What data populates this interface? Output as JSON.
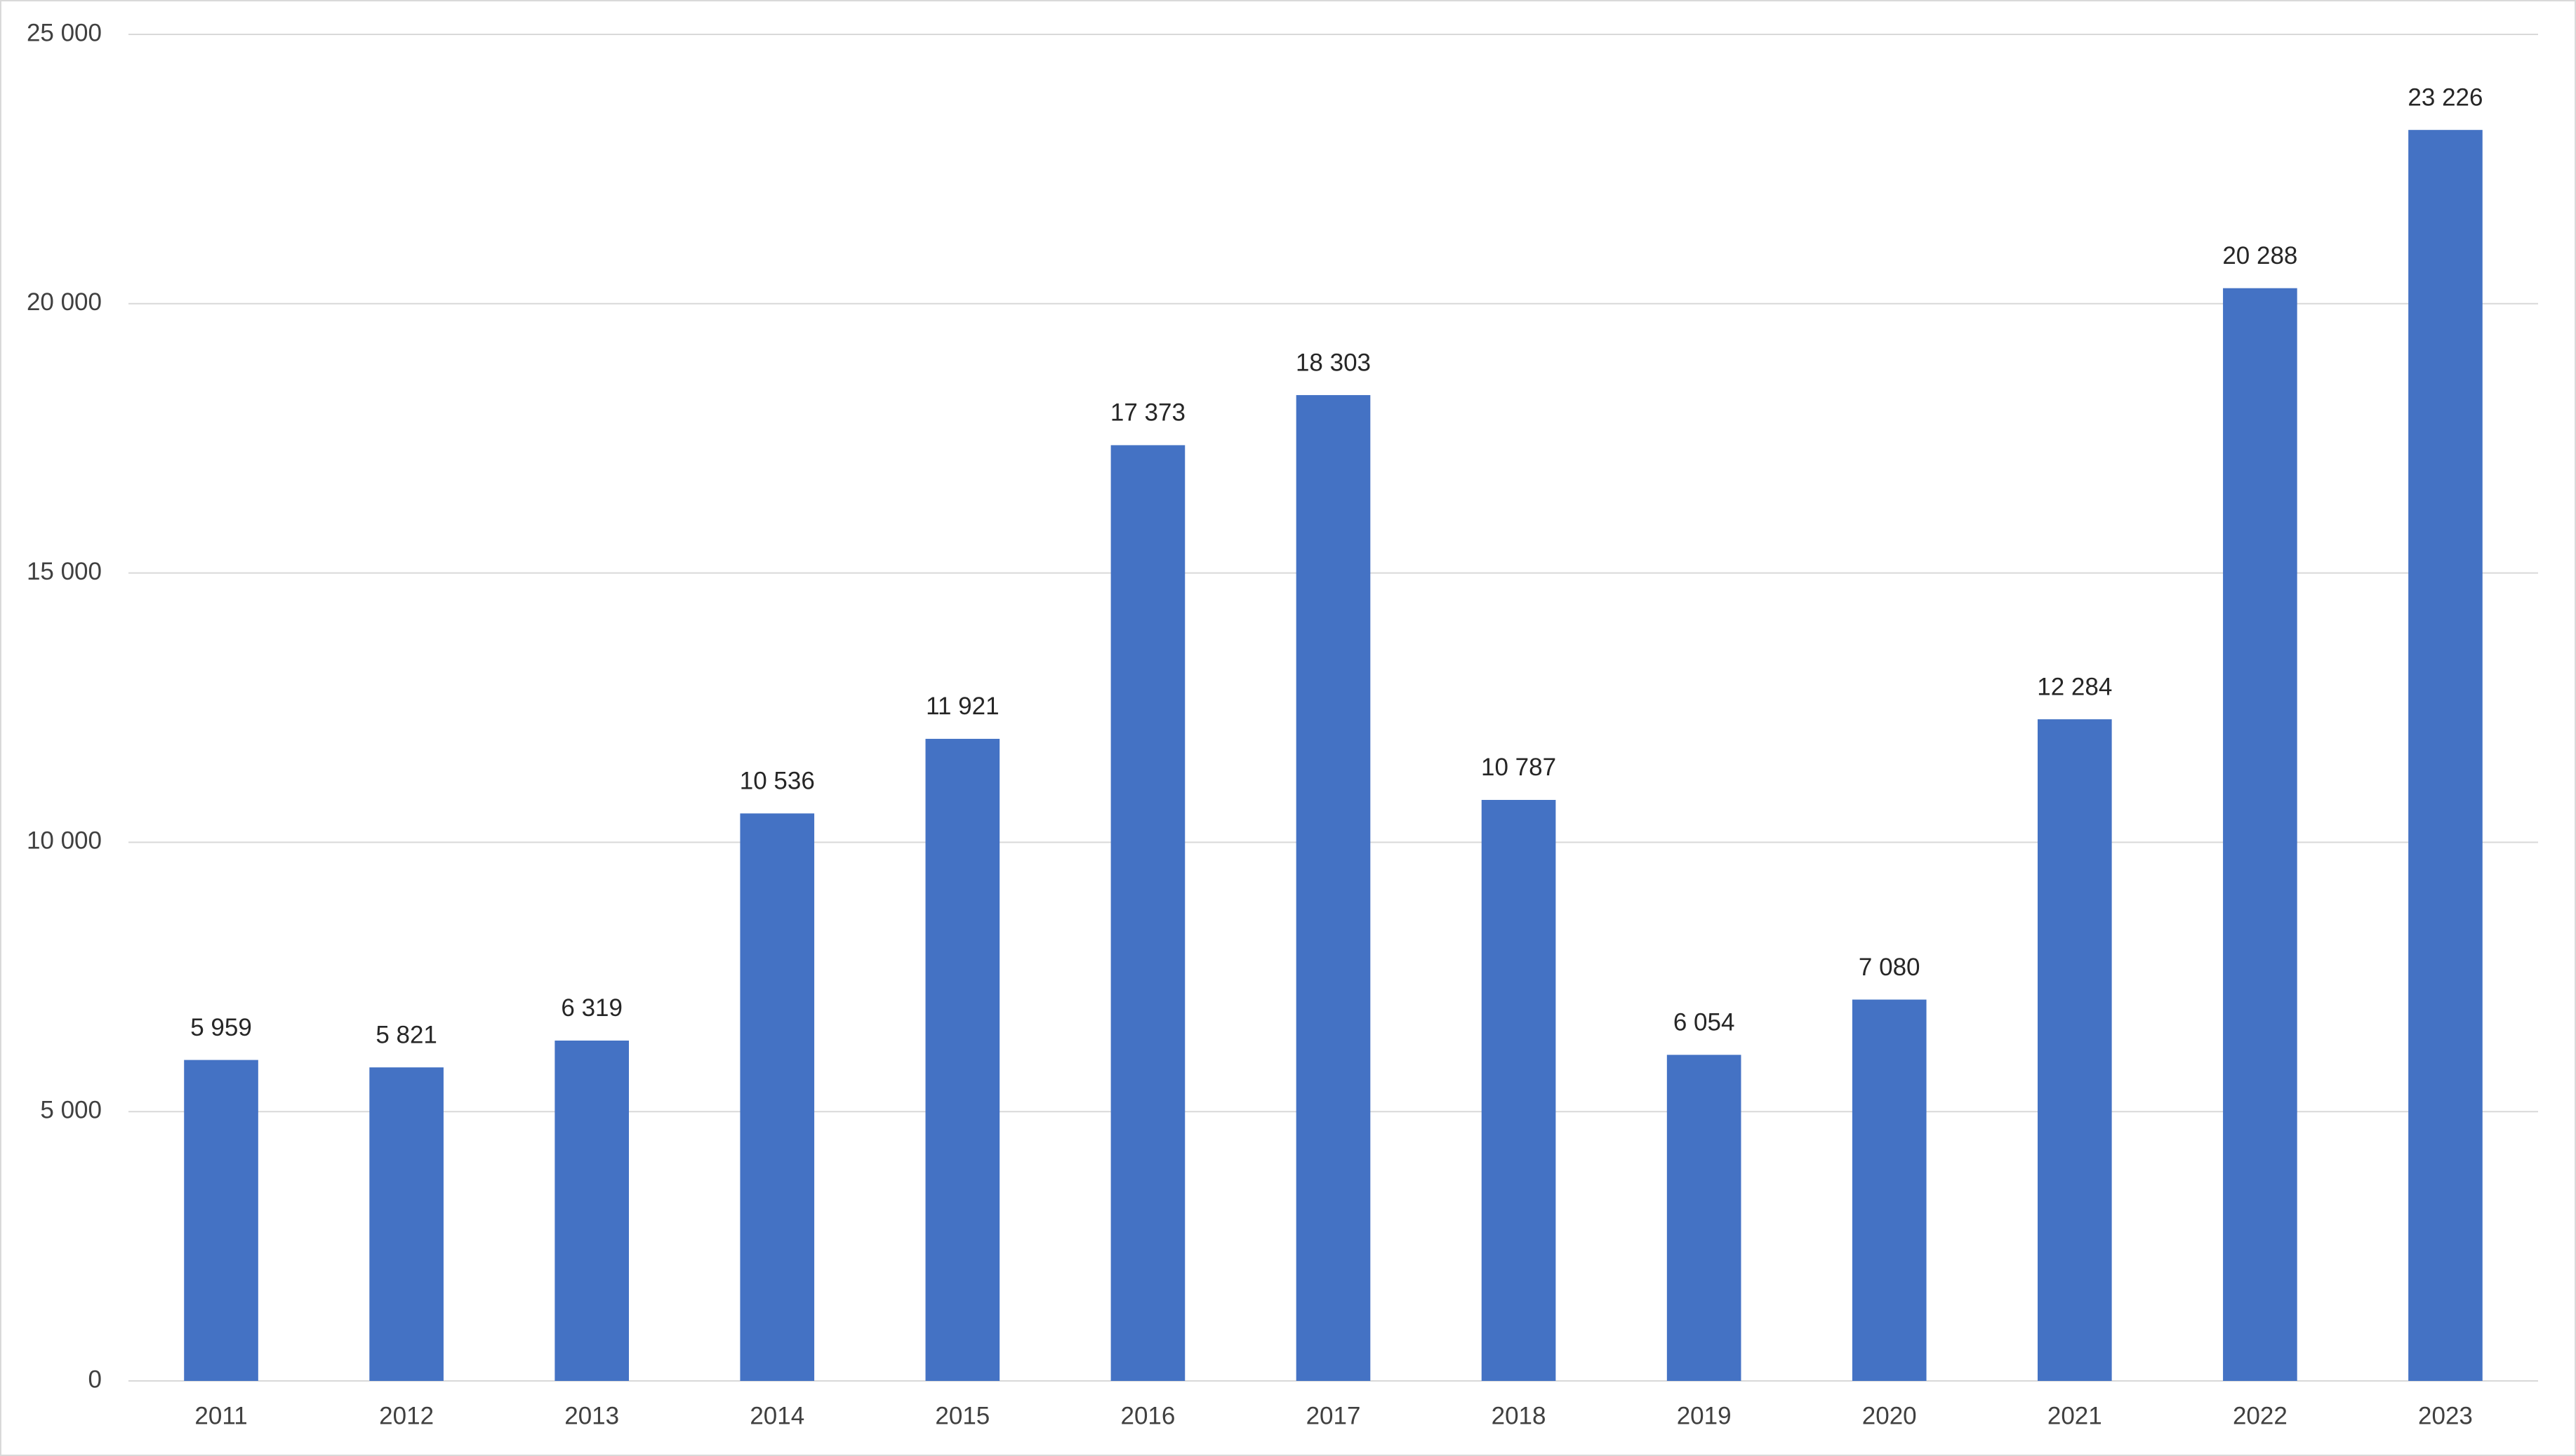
{
  "chart_data": {
    "type": "bar",
    "categories": [
      "2011",
      "2012",
      "2013",
      "2014",
      "2015",
      "2016",
      "2017",
      "2018",
      "2019",
      "2020",
      "2021",
      "2022",
      "2023"
    ],
    "values": [
      5959,
      5821,
      6319,
      10536,
      11921,
      17373,
      18303,
      10787,
      6054,
      7080,
      12284,
      20288,
      23226
    ],
    "value_labels": [
      "5 959",
      "5 821",
      "6 319",
      "10 536",
      "11 921",
      "17 373",
      "18 303",
      "10 787",
      "6 054",
      "7 080",
      "12 284",
      "20 288",
      "23 226"
    ],
    "color": "#4472c4",
    "ylim": [
      0,
      25000
    ],
    "yticks": [
      0,
      {
        "value": 5000,
        "label": "5 000"
      },
      {
        "value": 10000,
        "label": "10 000"
      },
      {
        "value": 15000,
        "label": "15 000"
      },
      {
        "value": 20000,
        "label": "20 000"
      },
      {
        "value": 25000,
        "label": "25 000"
      }
    ],
    "grid": true
  }
}
